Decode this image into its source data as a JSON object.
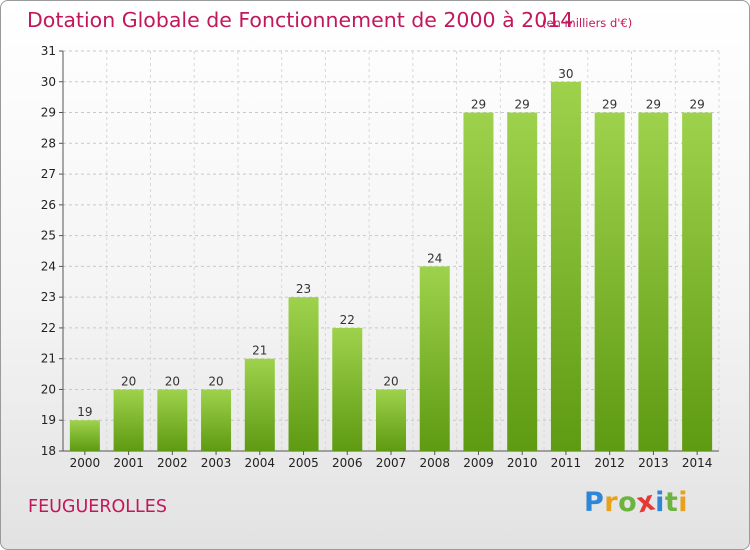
{
  "title": "Dotation Globale de Fonctionnement de 2000 à 2014",
  "unit_note": "(en milliers d'€)",
  "place_name": "FEUGUEROLLES",
  "logo": {
    "letters": [
      "P",
      "r",
      "o",
      "x",
      "i",
      "t",
      "i"
    ],
    "colors": [
      "#2e86d8",
      "#e8a11c",
      "#6db33f",
      "#e53935",
      "#2e86d8",
      "#6db33f",
      "#e8a11c"
    ]
  },
  "colors": {
    "accent": "#c2185b",
    "bar_light": "#9fd24c",
    "bar_dark": "#5e9a12"
  },
  "chart_data": {
    "type": "bar",
    "title": "Dotation Globale de Fonctionnement de 2000 à 2014",
    "subtitle": "(en milliers d'€)",
    "xlabel": "",
    "ylabel": "",
    "categories": [
      "2000",
      "2001",
      "2002",
      "2003",
      "2004",
      "2005",
      "2006",
      "2007",
      "2008",
      "2009",
      "2010",
      "2011",
      "2012",
      "2013",
      "2014"
    ],
    "values": [
      19,
      20,
      20,
      20,
      21,
      23,
      22,
      20,
      24,
      29,
      29,
      30,
      29,
      29,
      29
    ],
    "ylim": [
      18,
      31
    ],
    "yticks": [
      18,
      19,
      20,
      21,
      22,
      23,
      24,
      25,
      26,
      27,
      28,
      29,
      30,
      31
    ],
    "grid": "horizontal dashed",
    "legend": "none"
  }
}
